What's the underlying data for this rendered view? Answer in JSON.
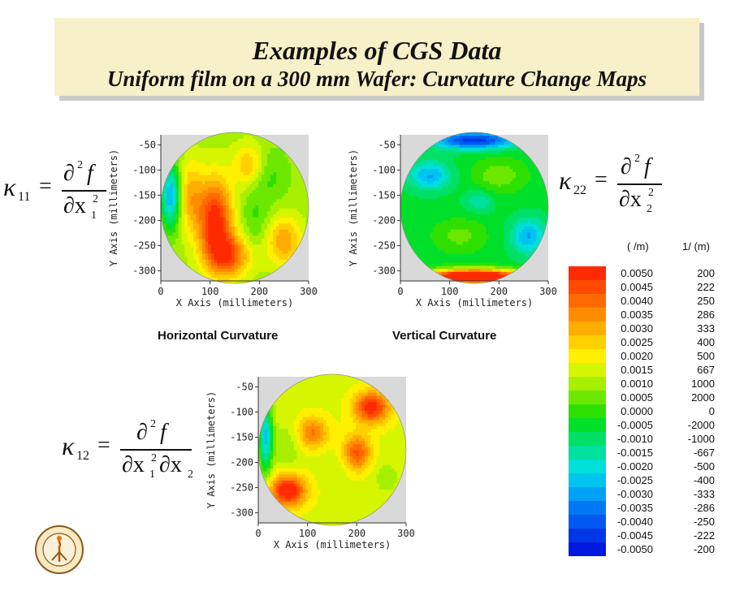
{
  "title": {
    "line1": "Examples of CGS Data",
    "line2": "Uniform film on a 300 mm Wafer: Curvature Change Maps"
  },
  "equations": {
    "k11": {
      "lhs_symbol": "κ",
      "lhs_sub": "11",
      "num": "∂",
      "num_sup": "2",
      "num_var": "f",
      "den": "∂x",
      "den_sub": "1",
      "den_sup": "2"
    },
    "k22": {
      "lhs_symbol": "κ",
      "lhs_sub": "22",
      "num": "∂",
      "num_sup": "2",
      "num_var": "f",
      "den": "∂x",
      "den_sub": "2",
      "den_sup": "2"
    },
    "k12": {
      "lhs_symbol": "κ",
      "lhs_sub": "12",
      "num": "∂",
      "num_sup": "2",
      "num_var": "f",
      "den1": "∂x",
      "den1_sub": "1",
      "den1_sup": "2",
      "den2": "∂x",
      "den2_sub": "2"
    }
  },
  "chart_data": [
    {
      "type": "heatmap",
      "title": "Horizontal Curvature",
      "xlabel": "X Axis (millimeters)",
      "ylabel": "Y Axis (millimeters)",
      "xlim": [
        0,
        300
      ],
      "ylim": [
        -320,
        -30
      ],
      "xticks": [
        "0",
        "100",
        "200",
        "300"
      ],
      "yticks": [
        "-50",
        "-100",
        "-150",
        "-200",
        "-250",
        "-300"
      ],
      "wafer": {
        "center_x": 150,
        "center_y": -175,
        "radius": 150
      },
      "field": {
        "base": 0.001,
        "blobs": [
          {
            "x": 110,
            "y": -200,
            "sx": 25,
            "sy": 60,
            "a": 0.0042
          },
          {
            "x": 140,
            "y": -270,
            "sx": 30,
            "sy": 30,
            "a": 0.003
          },
          {
            "x": 60,
            "y": -150,
            "sx": 18,
            "sy": 50,
            "a": 0.0018
          },
          {
            "x": 20,
            "y": -150,
            "sx": 14,
            "sy": 45,
            "a": -0.0038
          },
          {
            "x": 215,
            "y": -110,
            "sx": 30,
            "sy": 40,
            "a": -0.001
          },
          {
            "x": 250,
            "y": -240,
            "sx": 25,
            "sy": 35,
            "a": 0.0022
          },
          {
            "x": 180,
            "y": -90,
            "sx": 22,
            "sy": 30,
            "a": 0.002
          },
          {
            "x": 190,
            "y": -200,
            "sx": 20,
            "sy": 40,
            "a": -0.0008
          }
        ]
      }
    },
    {
      "type": "heatmap",
      "title": "Vertical Curvature",
      "xlabel": "X Axis (millimeters)",
      "ylabel": "Y Axis (millimeters)",
      "xlim": [
        0,
        300
      ],
      "ylim": [
        -320,
        -30
      ],
      "xticks": [
        "0",
        "100",
        "200",
        "300"
      ],
      "yticks": [
        "-50",
        "-100",
        "-150",
        "-200",
        "-250",
        "-300"
      ],
      "wafer": {
        "center_x": 150,
        "center_y": -175,
        "radius": 150
      },
      "field": {
        "base": -0.0006,
        "blobs": [
          {
            "x": 150,
            "y": -310,
            "sx": 70,
            "sy": 10,
            "a": 0.008
          },
          {
            "x": 150,
            "y": -40,
            "sx": 60,
            "sy": 12,
            "a": -0.004
          },
          {
            "x": 60,
            "y": -110,
            "sx": 30,
            "sy": 20,
            "a": -0.0022
          },
          {
            "x": 260,
            "y": -230,
            "sx": 25,
            "sy": 25,
            "a": -0.0022
          },
          {
            "x": 200,
            "y": -110,
            "sx": 40,
            "sy": 25,
            "a": 0.0012
          },
          {
            "x": 120,
            "y": -230,
            "sx": 40,
            "sy": 25,
            "a": 0.001
          },
          {
            "x": 160,
            "y": -160,
            "sx": 20,
            "sy": 15,
            "a": -0.0012
          }
        ]
      }
    },
    {
      "type": "heatmap",
      "title": "",
      "xlabel": "X Axis (millimeters)",
      "ylabel": "Y Axis (millimeters)",
      "xlim": [
        0,
        300
      ],
      "ylim": [
        -320,
        -30
      ],
      "xticks": [
        "0",
        "100",
        "200",
        "300"
      ],
      "yticks": [
        "-50",
        "-100",
        "-150",
        "-200",
        "-250",
        "-300"
      ],
      "wafer": {
        "center_x": 150,
        "center_y": -175,
        "radius": 150
      },
      "field": {
        "base": 0.0016,
        "blobs": [
          {
            "x": 60,
            "y": -255,
            "sx": 25,
            "sy": 22,
            "a": 0.004
          },
          {
            "x": 110,
            "y": -140,
            "sx": 22,
            "sy": 22,
            "a": 0.0022
          },
          {
            "x": 230,
            "y": -90,
            "sx": 25,
            "sy": 22,
            "a": 0.0036
          },
          {
            "x": 200,
            "y": -180,
            "sx": 20,
            "sy": 25,
            "a": 0.0028
          },
          {
            "x": 15,
            "y": -150,
            "sx": 10,
            "sy": 50,
            "a": -0.004
          },
          {
            "x": 60,
            "y": -170,
            "sx": 18,
            "sy": 35,
            "a": -0.0008
          },
          {
            "x": 160,
            "y": -210,
            "sx": 25,
            "sy": 20,
            "a": -0.0004
          },
          {
            "x": 260,
            "y": -230,
            "sx": 20,
            "sy": 25,
            "a": -0.0006
          }
        ]
      }
    },
    {
      "type": "table",
      "title": "",
      "headers": [
        "( /m)",
        "1/  (m)"
      ],
      "levels": [
        0.005,
        0.0045,
        0.004,
        0.0035,
        0.003,
        0.0025,
        0.002,
        0.0015,
        0.001,
        0.0005,
        0.0,
        -0.0005,
        -0.001,
        -0.0015,
        -0.002,
        -0.0025,
        -0.003,
        -0.0035,
        -0.004,
        -0.0045,
        -0.005
      ],
      "labels": [
        "0.0050",
        "0.0045",
        "0.0040",
        "0.0035",
        "0.0030",
        "0.0025",
        "0.0020",
        "0.0015",
        "0.0010",
        "0.0005",
        "0.0000",
        "-0.0005",
        "-0.0010",
        "-0.0015",
        "-0.0020",
        "-0.0025",
        "-0.0030",
        "-0.0035",
        "-0.0040",
        "-0.0045",
        "-0.0050"
      ],
      "radius": [
        "200",
        "222",
        "250",
        "286",
        "333",
        "400",
        "500",
        "667",
        "1000",
        "2000",
        "0",
        "-2000",
        "-1000",
        "-667",
        "-500",
        "-400",
        "-333",
        "-286",
        "-250",
        "-222",
        "-200"
      ],
      "colors": [
        "#ff2a00",
        "#ff4a00",
        "#ff6a00",
        "#ff8c00",
        "#ffad00",
        "#ffd000",
        "#fff000",
        "#d6f500",
        "#a6ef00",
        "#6ce800",
        "#2ee000",
        "#00e02a",
        "#00e064",
        "#00e09e",
        "#00e0d8",
        "#00c4f0",
        "#00a0f4",
        "#0078f4",
        "#0058f0",
        "#0038e8",
        "#0018e0"
      ]
    }
  ]
}
